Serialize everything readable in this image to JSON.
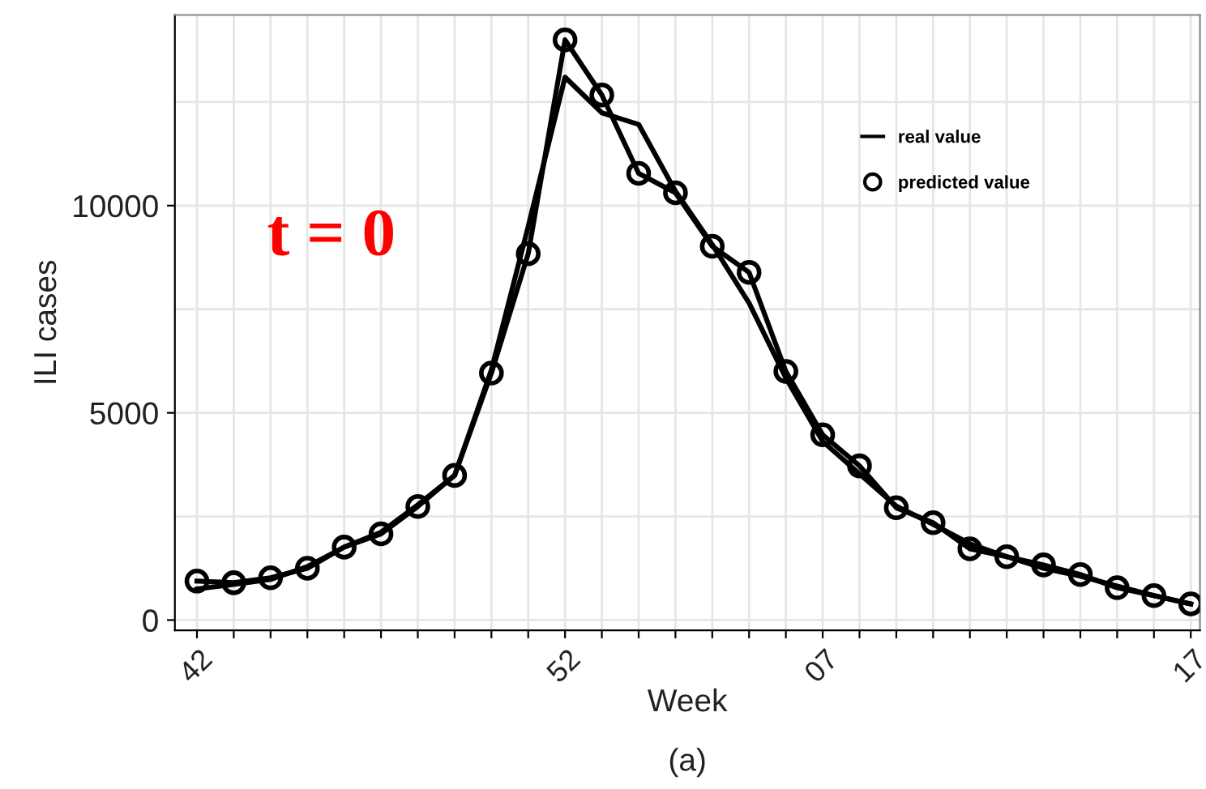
{
  "chart_data": {
    "type": "line",
    "xlabel": "Week",
    "ylabel": "ILI cases",
    "categories": [
      "42",
      null,
      null,
      null,
      null,
      null,
      null,
      null,
      null,
      null,
      "52",
      null,
      null,
      null,
      null,
      null,
      null,
      "07",
      null,
      null,
      null,
      null,
      null,
      null,
      null,
      null,
      null,
      "17"
    ],
    "series": [
      {
        "name": "real value",
        "color": "#000000",
        "marker": "none",
        "values": [
          750,
          860,
          980,
          1290,
          1760,
          2120,
          2780,
          3490,
          6040,
          9500,
          13100,
          12240,
          11960,
          10350,
          9060,
          7650,
          5840,
          4310,
          3530,
          2750,
          2310,
          1840,
          1530,
          1250,
          1060,
          820,
          590,
          390
        ]
      },
      {
        "name": "predicted value",
        "color": "#000000",
        "marker": "circle",
        "values": [
          940,
          900,
          1020,
          1250,
          1760,
          2080,
          2740,
          3490,
          5960,
          8840,
          14000,
          12670,
          10780,
          10310,
          9020,
          8390,
          6000,
          4470,
          3720,
          2710,
          2350,
          1720,
          1530,
          1330,
          1100,
          780,
          590,
          390
        ]
      }
    ],
    "ylim": [
      -250,
      14600
    ],
    "yticks": [
      0,
      {
        "value": 2500,
        "label": null
      },
      5000,
      {
        "value": 7500,
        "label": null
      },
      10000,
      {
        "value": 12500,
        "label": null
      }
    ],
    "grid": true,
    "legend": "top right",
    "line_style": "solid",
    "annotations": [
      "t = 0",
      "(a)"
    ]
  }
}
